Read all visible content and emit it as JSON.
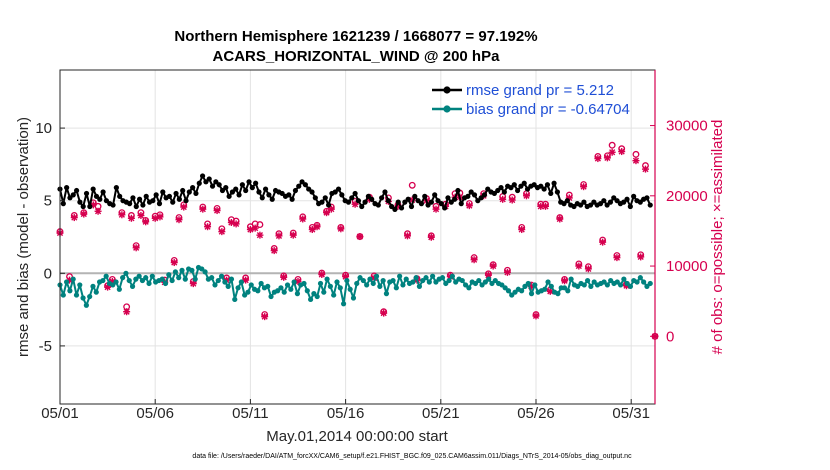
{
  "chart_data": {
    "type": "line",
    "title_lines": [
      "Northern Hemisphere 1621239 / 1668077 = 97.192%",
      "ACARS_HORIZONTAL_WIND @ 200 hPa"
    ],
    "xlabel": "May.01,2014 00:00:00 start",
    "ylabel_left": "rmse and bias (model - observation)",
    "ylabel_right": "# of obs: o=possible; ×=assimilated",
    "footer": "data file: /Users/raeder/DAI/ATM_forcXX/CAM6_setup/f.e21.FHIST_BGC.f09_025.CAM6assim.011/Diags_NTrS_2014-05/obs_diag_output.nc",
    "x_ticks": [
      {
        "label": "05/01",
        "day": 0
      },
      {
        "label": "05/06",
        "day": 5
      },
      {
        "label": "05/11",
        "day": 10
      },
      {
        "label": "05/16",
        "day": 15
      },
      {
        "label": "05/21",
        "day": 20
      },
      {
        "label": "05/26",
        "day": 25
      },
      {
        "label": "05/31",
        "day": 30
      }
    ],
    "xlim": [
      0,
      31.25
    ],
    "ylim_left": [
      -9,
      14
    ],
    "ylim_right": [
      -9636,
      37909
    ],
    "yticks_left": [
      -5,
      0,
      5,
      10
    ],
    "yticks_right": [
      0,
      10000,
      20000,
      30000
    ],
    "colors": {
      "rmse": "#000000",
      "bias": "#00827f",
      "obs": "#d6004f",
      "zero": "#b4b4b4"
    },
    "legend": [
      {
        "label": "rmse grand pr = 5.212",
        "series": "rmse"
      },
      {
        "label": "bias grand pr = -0.64704",
        "series": "bias"
      }
    ],
    "series": [
      {
        "name": "rmse",
        "axis": "left",
        "values": [
          5.8,
          4.8,
          5.9,
          5.2,
          5.4,
          5.7,
          4.9,
          4.6,
          5.5,
          4.6,
          5.8,
          5.3,
          5.1,
          5.6,
          5.0,
          4.8,
          4.7,
          5.9,
          5.3,
          5.0,
          4.9,
          4.8,
          5.2,
          4.6,
          5.1,
          4.7,
          5.3,
          4.9,
          5.0,
          5.4,
          4.8,
          5.6,
          5.2,
          5.3,
          4.9,
          5.5,
          5.1,
          5.7,
          5.0,
          5.6,
          5.9,
          5.5,
          6.2,
          6.7,
          6.3,
          6.5,
          6.0,
          6.3,
          6.1,
          5.7,
          5.9,
          5.3,
          5.6,
          5.8,
          5.4,
          6.1,
          5.7,
          6.3,
          5.9,
          6.2,
          5.6,
          5.2,
          5.8,
          5.4,
          5.1,
          5.7,
          5.6,
          5.5,
          5.3,
          5.4,
          5.1,
          5.7,
          6.0,
          6.3,
          6.1,
          5.8,
          5.6,
          5.2,
          4.8,
          4.9,
          5.2,
          4.7,
          5.5,
          5.6,
          5.8,
          5.4,
          5.0,
          4.9,
          5.2,
          5.5,
          5.0,
          4.6,
          4.9,
          5.3,
          5.1,
          4.8,
          4.7,
          5.2,
          5.6,
          5.0,
          4.6,
          4.4,
          4.9,
          4.5,
          4.9,
          5.1,
          4.6,
          5.3,
          5.0,
          4.8,
          5.3,
          4.7,
          4.9,
          5.4,
          5.0,
          4.8,
          4.5,
          5.2,
          4.9,
          5.1,
          5.7,
          4.8,
          5.2,
          5.3,
          5.6,
          5.4,
          5.0,
          5.2,
          5.4,
          5.8,
          5.6,
          5.5,
          5.7,
          5.9,
          5.6,
          6.0,
          5.9,
          6.1,
          5.7,
          6.0,
          6.2,
          5.8,
          6.0,
          6.1,
          5.9,
          6.0,
          5.8,
          6.1,
          5.5,
          6.2,
          5.6,
          4.9,
          4.8,
          5.0,
          4.7,
          4.6,
          4.8,
          4.7,
          4.9,
          4.6,
          4.7,
          4.9,
          4.7,
          4.8,
          5.0,
          4.7,
          4.9,
          5.2,
          5.0,
          4.8,
          4.9,
          5.1,
          4.6,
          5.3,
          5.0,
          4.9,
          5.1,
          5.2,
          4.7
        ]
      },
      {
        "name": "bias",
        "axis": "left",
        "values": [
          -0.8,
          -1.5,
          -0.6,
          -1.2,
          -0.4,
          -1.5,
          -0.8,
          -1.7,
          -2.2,
          -1.6,
          -0.9,
          -1.3,
          -0.6,
          -0.5,
          -0.2,
          -0.7,
          -0.8,
          -0.6,
          -1.1,
          -0.3,
          0.0,
          -0.5,
          -0.9,
          -0.4,
          -0.2,
          -0.5,
          -0.3,
          -0.7,
          -0.2,
          -0.6,
          -0.5,
          -0.4,
          -0.7,
          -0.1,
          -0.5,
          0.1,
          -0.3,
          0.2,
          -0.4,
          0.3,
          0.2,
          -0.4,
          0.4,
          0.3,
          0.1,
          -0.4,
          -0.3,
          -0.8,
          -0.5,
          -0.2,
          -0.6,
          -0.9,
          -0.4,
          -1.8,
          -1.0,
          -0.6,
          -1.5,
          -1.3,
          -0.8,
          -1.1,
          -1.2,
          -0.7,
          -1.0,
          -0.9,
          -1.6,
          -1.3,
          -1.2,
          -1.0,
          -1.3,
          -0.8,
          -1.1,
          -0.6,
          -1.4,
          -0.8,
          -0.7,
          -1.2,
          -1.8,
          -1.4,
          -1.6,
          -0.7,
          -1.3,
          -0.4,
          -0.9,
          -1.5,
          -0.6,
          -1.0,
          -2.1,
          -0.5,
          -1.1,
          -1.7,
          -0.7,
          -0.3,
          -0.5,
          -0.8,
          -0.4,
          -0.7,
          -0.2,
          -0.9,
          -0.5,
          -1.4,
          -0.6,
          -0.5,
          -1.0,
          -0.2,
          -0.8,
          -0.4,
          -0.7,
          -0.6,
          -0.3,
          -0.9,
          -0.5,
          -0.3,
          -0.6,
          -0.2,
          -0.6,
          -0.4,
          -0.3,
          -0.7,
          -0.5,
          -0.2,
          -0.6,
          -0.4,
          -0.5,
          -0.8,
          -1.0,
          -0.6,
          -0.7,
          -0.5,
          -0.8,
          -0.6,
          -0.4,
          -0.7,
          -0.5,
          -0.7,
          -0.8,
          -1.0,
          -1.2,
          -1.5,
          -1.3,
          -1.1,
          -1.2,
          -0.9,
          -0.7,
          -1.4,
          -0.8,
          -1.3,
          -1.2,
          -1.1,
          -0.6,
          -0.9,
          -1.3,
          -1.4,
          -1.0,
          -1.0,
          -1.2,
          -0.4,
          -0.8,
          -0.9,
          -0.7,
          -0.8,
          -0.5,
          -0.9,
          -0.6,
          -0.8,
          -0.7,
          -0.6,
          -0.8,
          -0.5,
          -0.7,
          -0.6,
          -0.8,
          -0.4,
          -0.7,
          -0.9,
          -0.5,
          -0.6,
          -0.3,
          -0.6,
          -0.9,
          -0.7
        ]
      }
    ],
    "obs_possible": [
      [
        0.0,
        14900
      ],
      [
        0.5,
        8500
      ],
      [
        0.75,
        17200
      ],
      [
        1.25,
        17600
      ],
      [
        1.75,
        19000
      ],
      [
        2.0,
        18500
      ],
      [
        2.5,
        7200
      ],
      [
        2.75,
        8100
      ],
      [
        3.25,
        17600
      ],
      [
        3.5,
        4200
      ],
      [
        3.75,
        17200
      ],
      [
        4.0,
        12900
      ],
      [
        4.25,
        17600
      ],
      [
        4.5,
        16500
      ],
      [
        5.0,
        17100
      ],
      [
        5.25,
        17300
      ],
      [
        5.5,
        8000
      ],
      [
        6.0,
        10800
      ],
      [
        6.25,
        16900
      ],
      [
        6.5,
        18700
      ],
      [
        7.0,
        7800
      ],
      [
        7.5,
        18400
      ],
      [
        7.75,
        16000
      ],
      [
        8.25,
        18200
      ],
      [
        8.5,
        15300
      ],
      [
        8.75,
        8300
      ],
      [
        9.0,
        16600
      ],
      [
        9.25,
        16400
      ],
      [
        9.75,
        8300
      ],
      [
        10.0,
        15600
      ],
      [
        10.25,
        16000
      ],
      [
        10.5,
        15900
      ],
      [
        10.75,
        3100
      ],
      [
        11.25,
        12500
      ],
      [
        11.5,
        14600
      ],
      [
        11.75,
        8600
      ],
      [
        12.25,
        14700
      ],
      [
        12.5,
        8100
      ],
      [
        12.75,
        17000
      ],
      [
        13.25,
        15500
      ],
      [
        13.5,
        15800
      ],
      [
        13.75,
        9000
      ],
      [
        14.0,
        17800
      ],
      [
        14.25,
        18400
      ],
      [
        14.75,
        15500
      ],
      [
        15.0,
        8700
      ],
      [
        15.5,
        19200
      ],
      [
        15.75,
        14200
      ],
      [
        16.25,
        19800
      ],
      [
        16.5,
        8600
      ],
      [
        17.0,
        3500
      ],
      [
        17.25,
        19700
      ],
      [
        17.75,
        18700
      ],
      [
        18.25,
        14600
      ],
      [
        18.5,
        21500
      ],
      [
        18.75,
        8200
      ],
      [
        19.25,
        19600
      ],
      [
        19.5,
        14300
      ],
      [
        19.75,
        18500
      ],
      [
        20.25,
        18800
      ],
      [
        20.5,
        8700
      ],
      [
        20.75,
        20300
      ],
      [
        21.0,
        20400
      ],
      [
        21.5,
        18900
      ],
      [
        21.75,
        11200
      ],
      [
        22.25,
        20300
      ],
      [
        22.5,
        8900
      ],
      [
        22.75,
        10200
      ],
      [
        23.25,
        19900
      ],
      [
        23.5,
        9400
      ],
      [
        23.75,
        19800
      ],
      [
        24.25,
        15500
      ],
      [
        24.5,
        20300
      ],
      [
        24.75,
        7300
      ],
      [
        25.0,
        3100
      ],
      [
        25.25,
        18800
      ],
      [
        25.5,
        18800
      ],
      [
        25.75,
        6600
      ],
      [
        26.25,
        16900
      ],
      [
        26.5,
        8100
      ],
      [
        26.75,
        20100
      ],
      [
        27.25,
        10300
      ],
      [
        27.5,
        21600
      ],
      [
        27.75,
        9900
      ],
      [
        28.25,
        25600
      ],
      [
        28.5,
        13700
      ],
      [
        28.75,
        25700
      ],
      [
        29.0,
        27200
      ],
      [
        29.25,
        11500
      ],
      [
        29.5,
        26700
      ],
      [
        29.75,
        7400
      ],
      [
        30.25,
        25900
      ],
      [
        30.5,
        11600
      ],
      [
        30.75,
        24300
      ],
      [
        31.25,
        0
      ]
    ],
    "obs_assimilated": [
      [
        0.0,
        14700
      ],
      [
        0.5,
        8000
      ],
      [
        0.75,
        16900
      ],
      [
        1.25,
        17400
      ],
      [
        1.75,
        18700
      ],
      [
        2.0,
        17800
      ],
      [
        2.5,
        7000
      ],
      [
        2.75,
        7800
      ],
      [
        3.25,
        17300
      ],
      [
        3.5,
        3500
      ],
      [
        3.75,
        16800
      ],
      [
        4.0,
        12600
      ],
      [
        4.25,
        17200
      ],
      [
        4.5,
        16300
      ],
      [
        5.0,
        16800
      ],
      [
        5.25,
        17000
      ],
      [
        5.5,
        7700
      ],
      [
        6.0,
        10500
      ],
      [
        6.25,
        16600
      ],
      [
        6.5,
        18400
      ],
      [
        7.0,
        7500
      ],
      [
        7.5,
        18100
      ],
      [
        7.75,
        15600
      ],
      [
        8.25,
        17900
      ],
      [
        8.5,
        14900
      ],
      [
        8.75,
        8000
      ],
      [
        9.0,
        16200
      ],
      [
        9.25,
        16000
      ],
      [
        9.75,
        8000
      ],
      [
        10.0,
        15200
      ],
      [
        10.25,
        15400
      ],
      [
        10.5,
        14400
      ],
      [
        10.75,
        2800
      ],
      [
        11.25,
        12200
      ],
      [
        11.5,
        14300
      ],
      [
        11.75,
        8400
      ],
      [
        12.25,
        14400
      ],
      [
        12.5,
        7800
      ],
      [
        12.75,
        16700
      ],
      [
        13.25,
        15200
      ],
      [
        13.5,
        15600
      ],
      [
        13.75,
        8800
      ],
      [
        14.0,
        17600
      ],
      [
        14.25,
        18100
      ],
      [
        14.75,
        15300
      ],
      [
        15.0,
        8500
      ],
      [
        15.5,
        18800
      ],
      [
        15.75,
        14200
      ],
      [
        16.25,
        19500
      ],
      [
        16.5,
        8300
      ],
      [
        17.0,
        3300
      ],
      [
        17.25,
        19200
      ],
      [
        17.75,
        18500
      ],
      [
        18.25,
        14300
      ],
      [
        18.5,
        19400
      ],
      [
        18.75,
        8000
      ],
      [
        19.25,
        19300
      ],
      [
        19.5,
        14100
      ],
      [
        19.75,
        18100
      ],
      [
        20.25,
        18500
      ],
      [
        20.5,
        8500
      ],
      [
        20.75,
        19800
      ],
      [
        21.0,
        19800
      ],
      [
        21.5,
        18600
      ],
      [
        21.75,
        10900
      ],
      [
        22.25,
        20000
      ],
      [
        22.5,
        8700
      ],
      [
        22.75,
        10000
      ],
      [
        23.25,
        19500
      ],
      [
        23.5,
        9100
      ],
      [
        23.75,
        19400
      ],
      [
        24.25,
        15200
      ],
      [
        24.5,
        20000
      ],
      [
        24.75,
        7100
      ],
      [
        25.0,
        2900
      ],
      [
        25.25,
        18500
      ],
      [
        25.5,
        18500
      ],
      [
        25.75,
        6400
      ],
      [
        26.25,
        16700
      ],
      [
        26.5,
        7900
      ],
      [
        26.75,
        19700
      ],
      [
        27.25,
        10000
      ],
      [
        27.5,
        21300
      ],
      [
        27.75,
        9600
      ],
      [
        28.25,
        25300
      ],
      [
        28.5,
        13400
      ],
      [
        28.75,
        25400
      ],
      [
        29.0,
        26200
      ],
      [
        29.25,
        11200
      ],
      [
        29.5,
        26300
      ],
      [
        29.75,
        7200
      ],
      [
        30.25,
        25000
      ],
      [
        30.5,
        11300
      ],
      [
        30.75,
        23800
      ],
      [
        31.25,
        0
      ]
    ]
  }
}
